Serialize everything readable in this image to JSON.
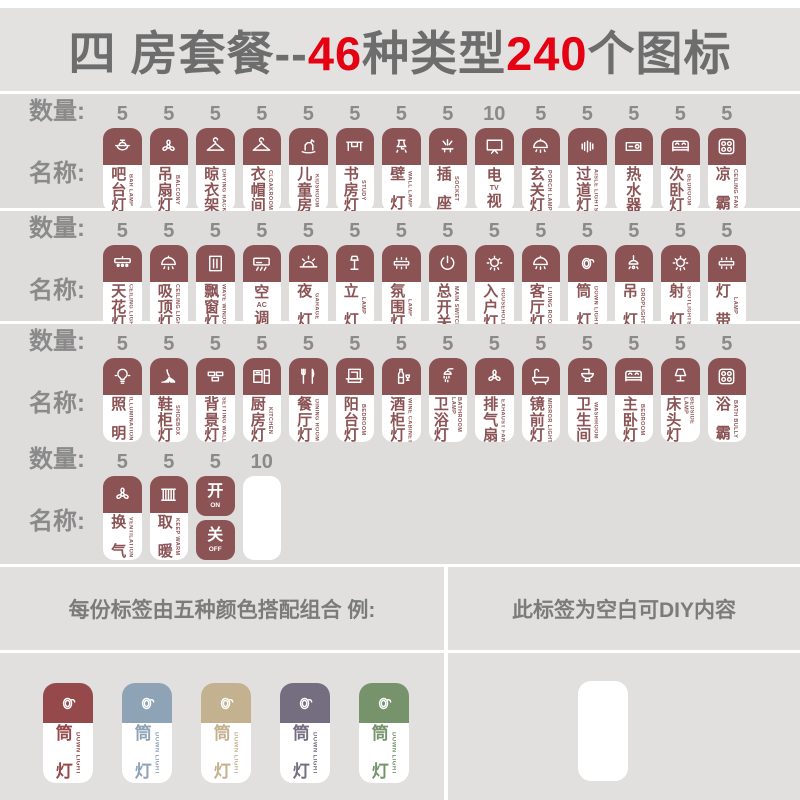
{
  "title": {
    "segments": [
      {
        "text": "四 房套餐--",
        "color": "gray"
      },
      {
        "text": "46",
        "color": "red"
      },
      {
        "text": "种类型",
        "color": "gray"
      },
      {
        "text": "240",
        "color": "red"
      },
      {
        "text": "个图标",
        "color": "gray"
      }
    ]
  },
  "labels": {
    "quantity": "数量:",
    "name": "名称:"
  },
  "colors": {
    "maroon": "#8b5354",
    "title_red": "#e50012",
    "background_gray": "#dedddc",
    "label_gray": "#8a8a8a"
  },
  "rows": [
    {
      "items": [
        {
          "qty": "5",
          "cn": "吧台灯",
          "en": "BAR LAMP",
          "icon": "pot"
        },
        {
          "qty": "5",
          "cn": "吊扇灯",
          "en": "BALCONY",
          "icon": "fan3"
        },
        {
          "qty": "5",
          "cn": "晾衣架",
          "en": "DRYING RACK",
          "icon": "hanger"
        },
        {
          "qty": "5",
          "cn": "衣帽间",
          "en": "CLOAKROOM",
          "icon": "hanger"
        },
        {
          "qty": "5",
          "cn": "儿童房",
          "en": "KIDSROOM",
          "icon": "horse"
        },
        {
          "qty": "5",
          "cn": "书房灯",
          "en": "STUDY",
          "icon": "desk"
        },
        {
          "qty": "5",
          "cn": "壁灯",
          "en": "WALL LAMP",
          "icon": "walllamp"
        },
        {
          "qty": "5",
          "cn": "插座",
          "en": "SOCKET",
          "icon": "socket"
        },
        {
          "qty": "10",
          "cn": "电视",
          "en": "TV",
          "icon": "tv",
          "inline": true
        },
        {
          "qty": "5",
          "cn": "玄关灯",
          "en": "PORCH LAMP",
          "icon": "dome"
        },
        {
          "qty": "5",
          "cn": "过道灯",
          "en": "AISLE LIGHTS",
          "icon": "aisle"
        },
        {
          "qty": "5",
          "cn": "热水器",
          "en": "",
          "icon": "heater"
        },
        {
          "qty": "5",
          "cn": "次卧灯",
          "en": "BEDROOM",
          "icon": "bed"
        },
        {
          "qty": "5",
          "cn": "凉霸",
          "en": "CEILING FAN",
          "icon": "gridfan"
        }
      ]
    },
    {
      "items": [
        {
          "qty": "5",
          "cn": "天花灯",
          "en": "CEILING LIGHT",
          "icon": "lightbar"
        },
        {
          "qty": "5",
          "cn": "吸顶灯",
          "en": "CEILING LIGHT",
          "icon": "dome"
        },
        {
          "qty": "5",
          "cn": "飘窗灯",
          "en": "WAVE WINDOW",
          "icon": "window"
        },
        {
          "qty": "5",
          "cn": "空调",
          "en": "AC",
          "icon": "ac",
          "inline": true
        },
        {
          "qty": "5",
          "cn": "夜灯",
          "en": "GARAGE",
          "icon": "sunrise"
        },
        {
          "qty": "5",
          "cn": "立灯",
          "en": "LAMP",
          "icon": "floorlamp"
        },
        {
          "qty": "5",
          "cn": "氛围灯",
          "en": "LAMP",
          "icon": "strip"
        },
        {
          "qty": "5",
          "cn": "总开关",
          "en": "MAIN SWITCH",
          "icon": "power"
        },
        {
          "qty": "5",
          "cn": "入户灯",
          "en": "HOUSEHOLD",
          "icon": "roundlight"
        },
        {
          "qty": "5",
          "cn": "客厅灯",
          "en": "LIVING ROOM",
          "icon": "dome"
        },
        {
          "qty": "5",
          "cn": "筒灯",
          "en": "DOWN LIGHT",
          "icon": "ring"
        },
        {
          "qty": "5",
          "cn": "吊灯",
          "en": "DROPLIGHT",
          "icon": "pendant"
        },
        {
          "qty": "5",
          "cn": "射灯",
          "en": "SPOTLIGHTS",
          "icon": "roundlight"
        },
        {
          "qty": "5",
          "cn": "灯带",
          "en": "LAMP",
          "icon": "strip"
        }
      ]
    },
    {
      "items": [
        {
          "qty": "5",
          "cn": "照明",
          "en": "ILLUMINATION",
          "icon": "bulb"
        },
        {
          "qty": "5",
          "cn": "鞋柜灯",
          "en": "SHOEBOX",
          "icon": "heel"
        },
        {
          "qty": "5",
          "cn": "背景灯",
          "en": "SETTING WALL",
          "icon": "bricks"
        },
        {
          "qty": "5",
          "cn": "厨房灯",
          "en": "KITCHEN",
          "icon": "kitchen"
        },
        {
          "qty": "5",
          "cn": "餐厅灯",
          "en": "DINING ROOM",
          "icon": "cutlery"
        },
        {
          "qty": "5",
          "cn": "阳台灯",
          "en": "BEDROOM",
          "icon": "balcony"
        },
        {
          "qty": "5",
          "cn": "酒柜灯",
          "en": "WINE CABINET",
          "icon": "bottle"
        },
        {
          "qty": "5",
          "cn": "卫浴灯",
          "en": "BATHROOM LAMP",
          "icon": "shower"
        },
        {
          "qty": "5",
          "cn": "排气扇",
          "en": "EXHAUST FAN",
          "icon": "fan3"
        },
        {
          "qty": "5",
          "cn": "镜前灯",
          "en": "MIRROR LIGHT",
          "icon": "tub"
        },
        {
          "qty": "5",
          "cn": "卫生间",
          "en": "WASHROOM",
          "icon": "toilet"
        },
        {
          "qty": "5",
          "cn": "主卧灯",
          "en": "BEDROOM",
          "icon": "bed"
        },
        {
          "qty": "5",
          "cn": "床头灯",
          "en": "BEDSIDE LAMP",
          "icon": "tablelamp"
        },
        {
          "qty": "5",
          "cn": "浴霸",
          "en": "BATH BULLY",
          "icon": "gridfan"
        }
      ]
    },
    {
      "items": [
        {
          "qty": "5",
          "cn": "换气",
          "en": "VENTILATION",
          "icon": "fan3"
        },
        {
          "qty": "5",
          "cn": "取暖",
          "en": "KEEP WARM",
          "icon": "radiator"
        },
        {
          "qty": "5",
          "type": "switch",
          "on_cn": "开",
          "on_en": "ON",
          "off_cn": "关",
          "off_en": "OFF"
        },
        {
          "qty": "10",
          "type": "blank"
        }
      ]
    }
  ],
  "bottom": {
    "left_title": "每份标签由五种颜色搭配组合 例:",
    "right_title": "此标签为空白可DIY内容",
    "sample": {
      "cn": "筒灯",
      "en": "DOWN LIGHT",
      "icon": "ring"
    },
    "sample_colors": [
      "#96494b",
      "#8fa3b6",
      "#c4b190",
      "#756e80",
      "#77936c"
    ]
  }
}
